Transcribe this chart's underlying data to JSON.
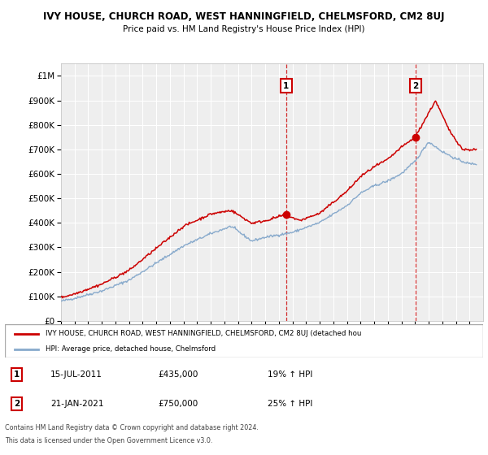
{
  "title": "IVY HOUSE, CHURCH ROAD, WEST HANNINGFIELD, CHELMSFORD, CM2 8UJ",
  "subtitle": "Price paid vs. HM Land Registry's House Price Index (HPI)",
  "ytick_values": [
    0,
    100000,
    200000,
    300000,
    400000,
    500000,
    600000,
    700000,
    800000,
    900000,
    1000000
  ],
  "ytick_labels": [
    "£0",
    "£100K",
    "£200K",
    "£300K",
    "£400K",
    "£500K",
    "£600K",
    "£700K",
    "£800K",
    "£900K",
    "£1M"
  ],
  "ylim": [
    0,
    1050000
  ],
  "xlim_start": 1995,
  "xlim_end": 2026,
  "background_color": "#ffffff",
  "plot_bg_color": "#eeeeee",
  "grid_color": "#ffffff",
  "red_line_color": "#cc0000",
  "blue_line_color": "#88aacc",
  "sale1_x": 2011.537,
  "sale1_y": 435000,
  "sale2_x": 2021.055,
  "sale2_y": 750000,
  "annotation1_date": "15-JUL-2011",
  "annotation1_price": "£435,000",
  "annotation1_pct": "19% ↑ HPI",
  "annotation2_date": "21-JAN-2021",
  "annotation2_price": "£750,000",
  "annotation2_pct": "25% ↑ HPI",
  "legend_label_red": "IVY HOUSE, CHURCH ROAD, WEST HANNINGFIELD, CHELMSFORD, CM2 8UJ (detached hou",
  "legend_label_blue": "HPI: Average price, detached house, Chelmsford",
  "footer1": "Contains HM Land Registry data © Crown copyright and database right 2024.",
  "footer2": "This data is licensed under the Open Government Licence v3.0."
}
